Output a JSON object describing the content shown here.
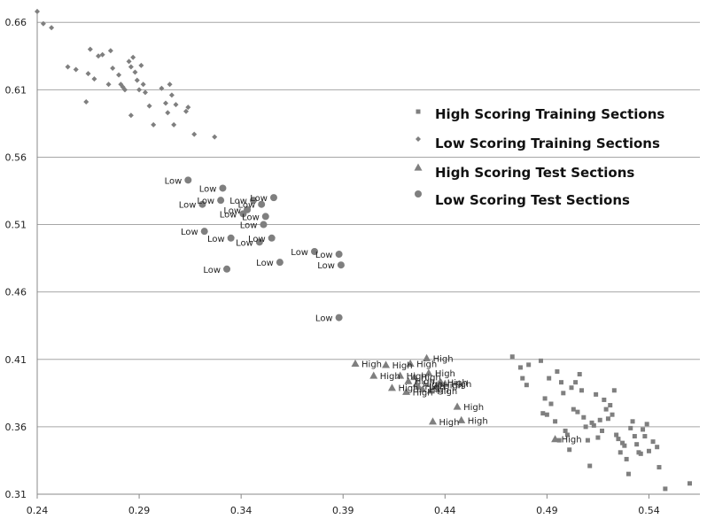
{
  "chart_data": {
    "type": "scatter",
    "xlim": [
      0.24,
      0.565
    ],
    "ylim": [
      0.31,
      0.67
    ],
    "x_ticks": [
      "0.24",
      "0.29",
      "0.34",
      "0.39",
      "0.44",
      "0.49",
      "0.54"
    ],
    "y_ticks": [
      "0.31",
      "0.36",
      "0.41",
      "0.46",
      "0.51",
      "0.56",
      "0.61",
      "0.66"
    ],
    "grid": "horizontal",
    "legend_position": "right",
    "colors": {
      "points": "#7f7f7f",
      "grid": "#a6a6a6",
      "axis": "#888888"
    },
    "series": [
      {
        "name": "High Scoring Training Sections",
        "marker": "square",
        "points": [
          [
            0.473,
            0.412
          ],
          [
            0.477,
            0.404
          ],
          [
            0.478,
            0.396
          ],
          [
            0.48,
            0.391
          ],
          [
            0.481,
            0.406
          ],
          [
            0.487,
            0.409
          ],
          [
            0.489,
            0.381
          ],
          [
            0.491,
            0.396
          ],
          [
            0.488,
            0.37
          ],
          [
            0.49,
            0.369
          ],
          [
            0.492,
            0.377
          ],
          [
            0.494,
            0.364
          ],
          [
            0.495,
            0.401
          ],
          [
            0.497,
            0.393
          ],
          [
            0.498,
            0.385
          ],
          [
            0.496,
            0.35
          ],
          [
            0.499,
            0.357
          ],
          [
            0.5,
            0.354
          ],
          [
            0.501,
            0.343
          ],
          [
            0.502,
            0.389
          ],
          [
            0.503,
            0.373
          ],
          [
            0.504,
            0.393
          ],
          [
            0.505,
            0.371
          ],
          [
            0.506,
            0.399
          ],
          [
            0.507,
            0.387
          ],
          [
            0.508,
            0.367
          ],
          [
            0.509,
            0.36
          ],
          [
            0.51,
            0.35
          ],
          [
            0.511,
            0.331
          ],
          [
            0.512,
            0.363
          ],
          [
            0.513,
            0.361
          ],
          [
            0.514,
            0.384
          ],
          [
            0.515,
            0.352
          ],
          [
            0.516,
            0.365
          ],
          [
            0.517,
            0.357
          ],
          [
            0.518,
            0.38
          ],
          [
            0.519,
            0.373
          ],
          [
            0.52,
            0.366
          ],
          [
            0.521,
            0.376
          ],
          [
            0.522,
            0.369
          ],
          [
            0.523,
            0.387
          ],
          [
            0.524,
            0.354
          ],
          [
            0.525,
            0.351
          ],
          [
            0.526,
            0.341
          ],
          [
            0.527,
            0.348
          ],
          [
            0.528,
            0.346
          ],
          [
            0.529,
            0.336
          ],
          [
            0.53,
            0.325
          ],
          [
            0.531,
            0.359
          ],
          [
            0.532,
            0.364
          ],
          [
            0.533,
            0.353
          ],
          [
            0.534,
            0.347
          ],
          [
            0.535,
            0.341
          ],
          [
            0.536,
            0.34
          ],
          [
            0.537,
            0.358
          ],
          [
            0.538,
            0.353
          ],
          [
            0.539,
            0.362
          ],
          [
            0.54,
            0.342
          ],
          [
            0.542,
            0.349
          ],
          [
            0.544,
            0.345
          ],
          [
            0.545,
            0.33
          ],
          [
            0.548,
            0.314
          ],
          [
            0.56,
            0.318
          ]
        ]
      },
      {
        "name": "Low Scoring Training Sections",
        "marker": "diamond",
        "points": [
          [
            0.24,
            0.668
          ],
          [
            0.243,
            0.659
          ],
          [
            0.247,
            0.656
          ],
          [
            0.255,
            0.627
          ],
          [
            0.259,
            0.625
          ],
          [
            0.264,
            0.601
          ],
          [
            0.265,
            0.622
          ],
          [
            0.266,
            0.64
          ],
          [
            0.268,
            0.618
          ],
          [
            0.27,
            0.635
          ],
          [
            0.272,
            0.636
          ],
          [
            0.275,
            0.614
          ],
          [
            0.276,
            0.639
          ],
          [
            0.277,
            0.626
          ],
          [
            0.28,
            0.621
          ],
          [
            0.281,
            0.614
          ],
          [
            0.282,
            0.612
          ],
          [
            0.283,
            0.61
          ],
          [
            0.285,
            0.631
          ],
          [
            0.286,
            0.627
          ],
          [
            0.286,
            0.591
          ],
          [
            0.287,
            0.634
          ],
          [
            0.288,
            0.623
          ],
          [
            0.289,
            0.617
          ],
          [
            0.29,
            0.61
          ],
          [
            0.291,
            0.628
          ],
          [
            0.292,
            0.614
          ],
          [
            0.293,
            0.608
          ],
          [
            0.295,
            0.598
          ],
          [
            0.297,
            0.584
          ],
          [
            0.301,
            0.611
          ],
          [
            0.303,
            0.6
          ],
          [
            0.304,
            0.593
          ],
          [
            0.305,
            0.614
          ],
          [
            0.306,
            0.606
          ],
          [
            0.307,
            0.584
          ],
          [
            0.308,
            0.599
          ],
          [
            0.313,
            0.594
          ],
          [
            0.314,
            0.597
          ],
          [
            0.317,
            0.577
          ],
          [
            0.327,
            0.575
          ]
        ]
      },
      {
        "name": "High Scoring Test Sections",
        "marker": "triangle",
        "points": [
          [
            0.396,
            0.407
          ],
          [
            0.405,
            0.398
          ],
          [
            0.411,
            0.406
          ],
          [
            0.414,
            0.389
          ],
          [
            0.418,
            0.398
          ],
          [
            0.421,
            0.386
          ],
          [
            0.422,
            0.394
          ],
          [
            0.423,
            0.407
          ],
          [
            0.425,
            0.397
          ],
          [
            0.426,
            0.392
          ],
          [
            0.427,
            0.39
          ],
          [
            0.429,
            0.388
          ],
          [
            0.431,
            0.411
          ],
          [
            0.432,
            0.4
          ],
          [
            0.433,
            0.387
          ],
          [
            0.434,
            0.364
          ],
          [
            0.436,
            0.391
          ],
          [
            0.438,
            0.393
          ],
          [
            0.44,
            0.392
          ],
          [
            0.446,
            0.375
          ],
          [
            0.448,
            0.365
          ],
          [
            0.494,
            0.351
          ]
        ],
        "labels": [
          "High",
          "High",
          "High",
          "High",
          "High",
          "High",
          "High",
          "High",
          "High",
          "High",
          "High",
          "High",
          "High",
          "High",
          "High",
          "High",
          "High",
          "High",
          "High",
          "High",
          "High",
          "High"
        ]
      },
      {
        "name": "Low Scoring Test Sections",
        "marker": "circle",
        "points": [
          [
            0.314,
            0.543
          ],
          [
            0.321,
            0.525
          ],
          [
            0.322,
            0.505
          ],
          [
            0.33,
            0.528
          ],
          [
            0.331,
            0.537
          ],
          [
            0.333,
            0.477
          ],
          [
            0.335,
            0.5
          ],
          [
            0.341,
            0.518
          ],
          [
            0.343,
            0.521
          ],
          [
            0.346,
            0.528
          ],
          [
            0.349,
            0.497
          ],
          [
            0.35,
            0.525
          ],
          [
            0.351,
            0.51
          ],
          [
            0.352,
            0.516
          ],
          [
            0.355,
            0.5
          ],
          [
            0.356,
            0.53
          ],
          [
            0.359,
            0.482
          ],
          [
            0.376,
            0.49
          ],
          [
            0.388,
            0.488
          ],
          [
            0.389,
            0.48
          ],
          [
            0.388,
            0.441
          ]
        ],
        "labels": [
          "Low",
          "Low",
          "Low",
          "Low",
          "Low",
          "Low",
          "Low",
          "Low",
          "Low",
          "Low",
          "Low",
          "Low",
          "Low",
          "Low",
          "Low",
          "Low",
          "Low",
          "Low",
          "Low",
          "Low",
          "Low"
        ]
      }
    ]
  }
}
